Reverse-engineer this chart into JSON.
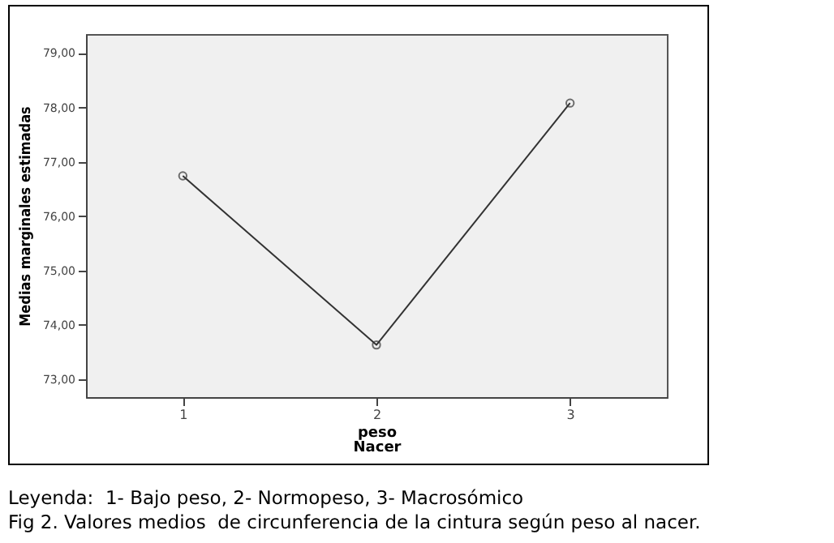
{
  "chart_data": {
    "type": "line",
    "xlabel": "peso\nNacer",
    "ylabel": "Medias marginales estimadas",
    "categories": [
      "1",
      "2",
      "3"
    ],
    "series": [
      {
        "color": "#333333",
        "values": [
          76.74,
          73.63,
          78.08
        ]
      }
    ],
    "ylim": [
      72.67,
      79.35
    ],
    "yticks": [
      {
        "value": 73,
        "label": "73,00"
      },
      {
        "value": 74,
        "label": "74,00"
      },
      {
        "value": 75,
        "label": "75,00"
      },
      {
        "value": 76,
        "label": "76,00"
      },
      {
        "value": 77,
        "label": "77,00"
      },
      {
        "value": 78,
        "label": "78,00"
      },
      {
        "value": 79,
        "label": "79,00"
      }
    ],
    "marker": "circle",
    "line_style": "solid",
    "legend": false,
    "grid": false,
    "annotations": [
      "Leyenda:  1- Bajo peso, 2- Normopeso, 3- Macrosómico",
      "Fig 2. Valores medios  de circunferencia de la cintura según peso al nacer."
    ]
  }
}
